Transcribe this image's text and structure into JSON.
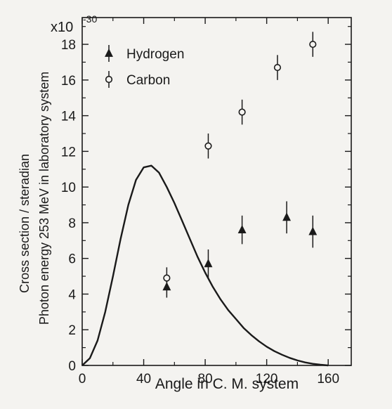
{
  "chart_data": {
    "type": "scatter",
    "multiplier": "x10",
    "multiplier_exp": "-30",
    "xlabel": "Angle in C. M. system",
    "ylabel_line1": "Cross section / steradian",
    "ylabel_line2": "Photon energy 253 MeV in laboratory system",
    "xlim": [
      0,
      175
    ],
    "ylim": [
      0,
      19.5
    ],
    "x_ticks": [
      0,
      40,
      80,
      120,
      160
    ],
    "y_ticks": [
      0,
      2,
      4,
      6,
      8,
      10,
      12,
      14,
      16,
      18
    ],
    "series": [
      {
        "name": "Hydrogen",
        "marker": "filled-triangle",
        "points": [
          {
            "x": 55,
            "y": 4.4,
            "err": 0.6
          },
          {
            "x": 82,
            "y": 5.7,
            "err": 0.8
          },
          {
            "x": 104,
            "y": 7.6,
            "err": 0.8
          },
          {
            "x": 133,
            "y": 8.3,
            "err": 0.9
          },
          {
            "x": 150,
            "y": 7.5,
            "err": 0.9
          }
        ]
      },
      {
        "name": "Carbon",
        "marker": "open-circle",
        "points": [
          {
            "x": 55,
            "y": 4.9,
            "err": 0.6
          },
          {
            "x": 82,
            "y": 12.3,
            "err": 0.7
          },
          {
            "x": 104,
            "y": 14.2,
            "err": 0.7
          },
          {
            "x": 127,
            "y": 16.7,
            "err": 0.7
          },
          {
            "x": 150,
            "y": 18.0,
            "err": 0.7
          }
        ]
      }
    ],
    "curve": [
      [
        0,
        0
      ],
      [
        5,
        0.4
      ],
      [
        10,
        1.4
      ],
      [
        15,
        3.0
      ],
      [
        20,
        5.0
      ],
      [
        25,
        7.1
      ],
      [
        30,
        9.0
      ],
      [
        35,
        10.4
      ],
      [
        40,
        11.1
      ],
      [
        45,
        11.2
      ],
      [
        50,
        10.8
      ],
      [
        55,
        10.0
      ],
      [
        60,
        9.1
      ],
      [
        65,
        8.1
      ],
      [
        70,
        7.1
      ],
      [
        75,
        6.1
      ],
      [
        80,
        5.2
      ],
      [
        85,
        4.4
      ],
      [
        90,
        3.7
      ],
      [
        95,
        3.1
      ],
      [
        100,
        2.6
      ],
      [
        105,
        2.1
      ],
      [
        110,
        1.7
      ],
      [
        115,
        1.35
      ],
      [
        120,
        1.05
      ],
      [
        125,
        0.8
      ],
      [
        130,
        0.6
      ],
      [
        135,
        0.42
      ],
      [
        140,
        0.28
      ],
      [
        145,
        0.17
      ],
      [
        150,
        0.09
      ],
      [
        155,
        0.04
      ],
      [
        160,
        0.0
      ]
    ]
  }
}
